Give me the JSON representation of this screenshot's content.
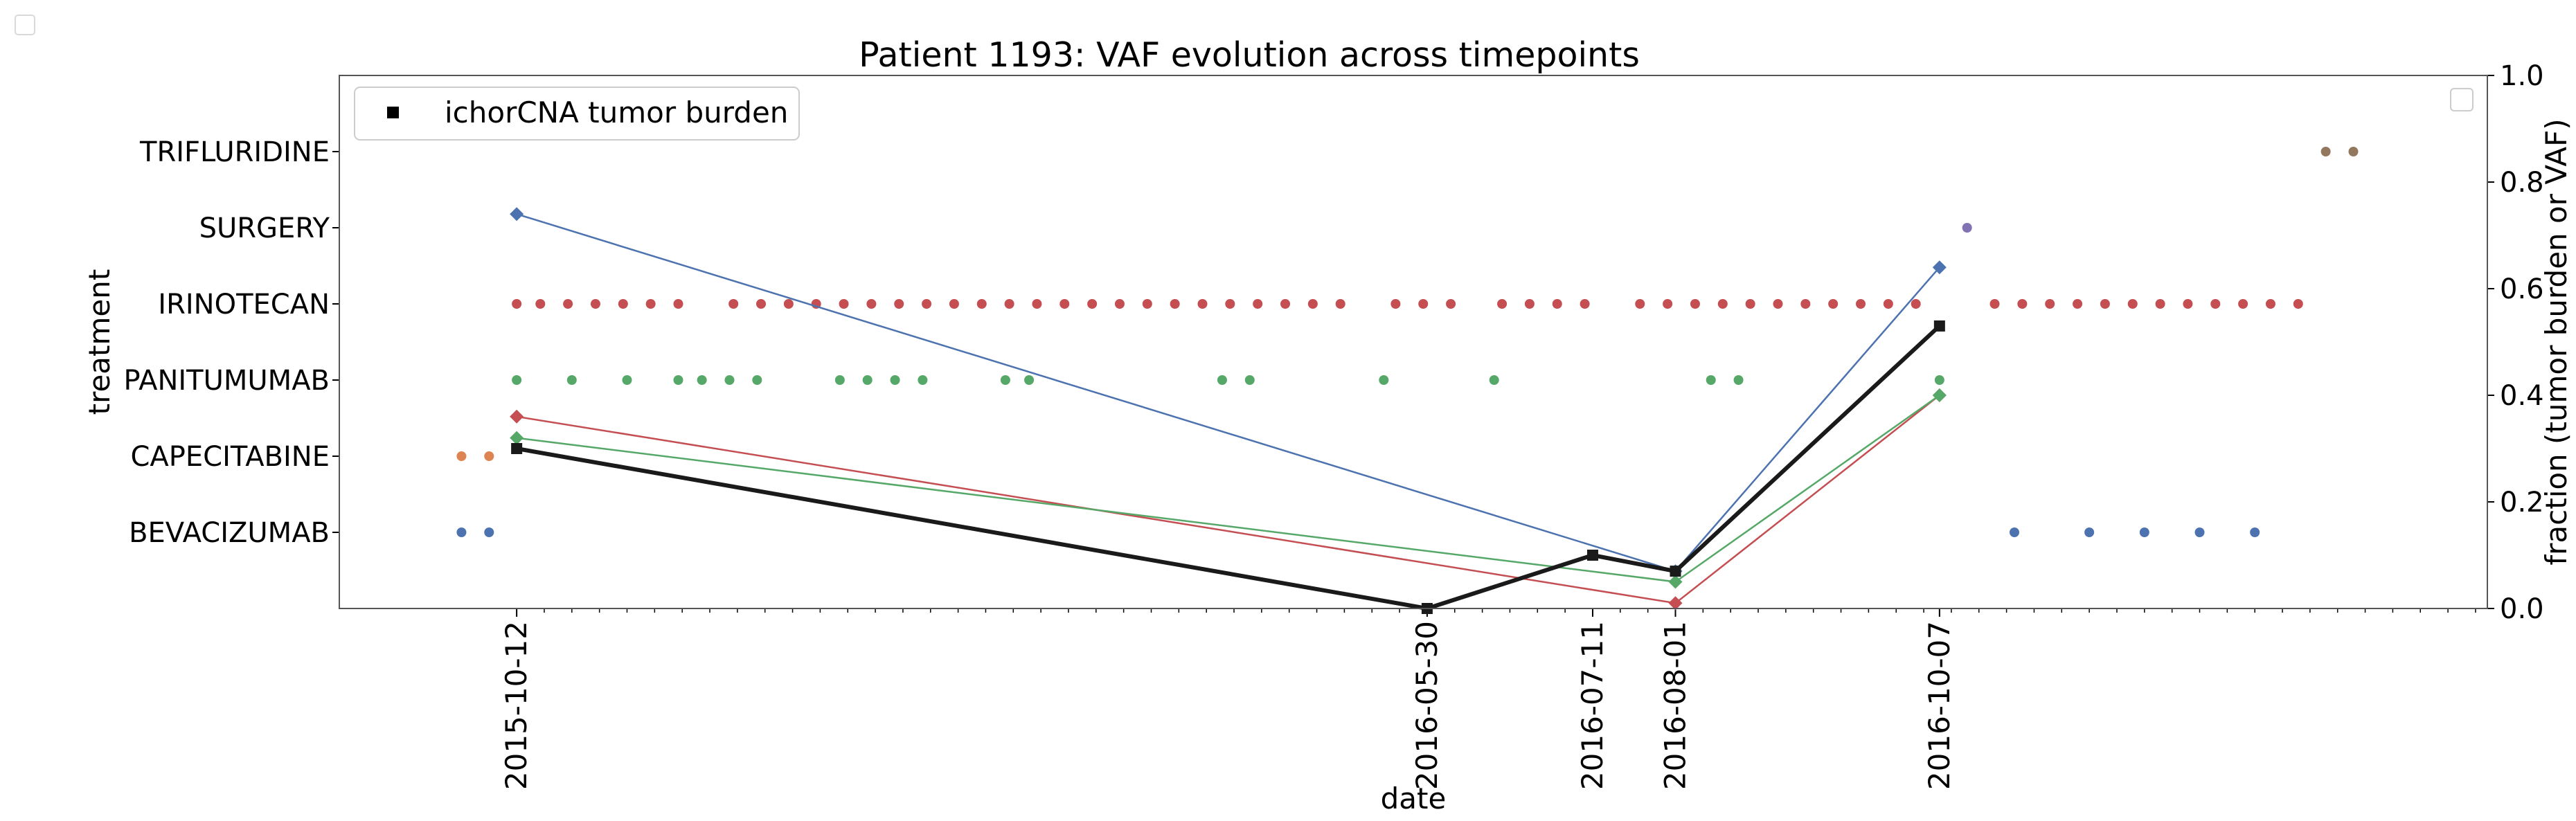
{
  "chart_data": {
    "type": "line",
    "title": "Patient 1193: VAF evolution across timepoints",
    "xlabel": "date",
    "ylabel_left": "treatment",
    "ylabel_right": "fraction (tumor burden or VAF)",
    "xlim": [
      "2015-08-28",
      "2017-02-23"
    ],
    "ylim_right": [
      0.0,
      1.0
    ],
    "right_ticks": [
      "0.0",
      "0.2",
      "0.4",
      "0.6",
      "0.8",
      "1.0"
    ],
    "x_ticks": [
      {
        "date": "2015-10-12",
        "label": "2015-10-12",
        "color": "#000000"
      },
      {
        "date": "2016-05-30",
        "label": "2016-05-30",
        "color": "#0000ff"
      },
      {
        "date": "2016-07-11",
        "label": "2016-07-11",
        "color": "#000000"
      },
      {
        "date": "2016-08-01",
        "label": "2016-08-01",
        "color": "#000000"
      },
      {
        "date": "2016-10-07",
        "label": "2016-10-07",
        "color": "#000000"
      }
    ],
    "minor_tick_interval_days": 7,
    "legend": {
      "position": "top-left",
      "entries": [
        {
          "label": "ichorCNA tumor burden",
          "marker": "square",
          "color": "#000000"
        }
      ]
    },
    "categories": [
      "BEVACIZUMAB",
      "CAPECITABINE",
      "PANITUMUMAB",
      "IRINOTECAN",
      "SURGERY",
      "TRIFLURIDINE"
    ],
    "treatments": [
      {
        "name": "BEVACIZUMAB",
        "color": "#4c72b0",
        "dates": [
          "2015-09-28",
          "2015-10-05",
          "2016-10-26",
          "2016-11-14",
          "2016-11-28",
          "2016-12-12",
          "2016-12-26"
        ]
      },
      {
        "name": "CAPECITABINE",
        "color": "#dd8452",
        "dates": [
          "2015-09-28",
          "2015-10-05"
        ]
      },
      {
        "name": "PANITUMUMAB",
        "color": "#55a868",
        "dates": [
          "2015-10-12",
          "2015-10-26",
          "2015-11-09",
          "2015-11-22",
          "2015-11-28",
          "2015-12-05",
          "2015-12-12",
          "2016-01-02",
          "2016-01-09",
          "2016-01-16",
          "2016-01-23",
          "2016-02-13",
          "2016-02-19",
          "2016-04-08",
          "2016-04-15",
          "2016-05-19",
          "2016-06-16",
          "2016-08-10",
          "2016-08-17",
          "2016-10-07"
        ]
      },
      {
        "name": "IRINOTECAN",
        "color": "#c44e52",
        "dates": [
          "2015-10-12",
          "2015-10-18",
          "2015-10-25",
          "2015-11-01",
          "2015-11-08",
          "2015-11-15",
          "2015-11-22",
          "2015-12-06",
          "2015-12-13",
          "2015-12-20",
          "2015-12-27",
          "2016-01-03",
          "2016-01-10",
          "2016-01-17",
          "2016-01-24",
          "2016-01-31",
          "2016-02-07",
          "2016-02-14",
          "2016-02-21",
          "2016-02-28",
          "2016-03-06",
          "2016-03-13",
          "2016-03-20",
          "2016-03-27",
          "2016-04-03",
          "2016-04-10",
          "2016-04-17",
          "2016-04-24",
          "2016-05-01",
          "2016-05-08",
          "2016-05-22",
          "2016-05-29",
          "2016-06-05",
          "2016-06-18",
          "2016-06-25",
          "2016-07-02",
          "2016-07-09",
          "2016-07-23",
          "2016-07-30",
          "2016-08-06",
          "2016-08-13",
          "2016-08-20",
          "2016-08-27",
          "2016-09-03",
          "2016-09-10",
          "2016-09-17",
          "2016-09-24",
          "2016-10-01",
          "2016-10-21",
          "2016-10-28",
          "2016-11-04",
          "2016-11-11",
          "2016-11-18",
          "2016-11-25",
          "2016-12-02",
          "2016-12-09",
          "2016-12-16",
          "2016-12-23",
          "2016-12-30",
          "2017-01-06"
        ]
      },
      {
        "name": "SURGERY",
        "color": "#8172b3",
        "dates": [
          "2016-10-14"
        ]
      },
      {
        "name": "TRIFLURIDINE",
        "color": "#937860",
        "dates": [
          "2017-01-13",
          "2017-01-20"
        ]
      }
    ],
    "series": [
      {
        "name": "ichorCNA tumor burden",
        "color": "#1a1a1a",
        "marker": "square",
        "x": [
          "2015-10-12",
          "2016-05-30",
          "2016-07-11",
          "2016-08-01",
          "2016-10-07"
        ],
        "y": [
          0.3,
          0.0,
          0.1,
          0.07,
          0.53
        ]
      },
      {
        "color": "#4c72b0",
        "marker": "diamond",
        "x": [
          "2015-10-12",
          "2016-08-01",
          "2016-10-07"
        ],
        "y": [
          0.74,
          0.07,
          0.64
        ]
      },
      {
        "color": "#c44e52",
        "marker": "diamond",
        "x": [
          "2015-10-12",
          "2016-08-01",
          "2016-10-07"
        ],
        "y": [
          0.36,
          0.01,
          0.4
        ]
      },
      {
        "color": "#55a868",
        "marker": "diamond",
        "x": [
          "2015-10-12",
          "2016-08-01",
          "2016-10-07"
        ],
        "y": [
          0.32,
          0.05,
          0.4
        ]
      }
    ]
  }
}
